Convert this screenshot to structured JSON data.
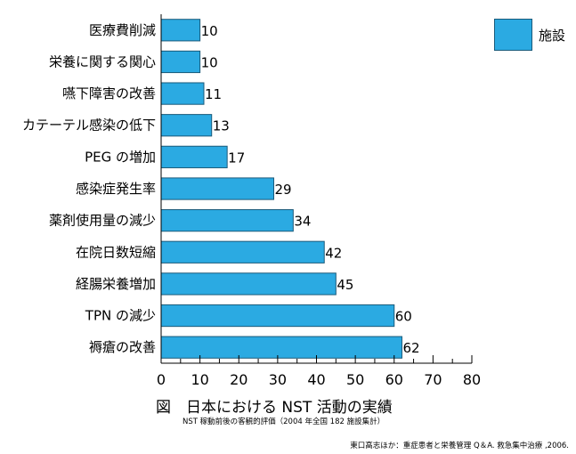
{
  "chart_data": {
    "type": "bar",
    "orientation": "horizontal",
    "categories": [
      "医療費削減",
      "栄養に関する関心",
      "嚥下障害の改善",
      "カテーテル感染の低下",
      "PEG の増加",
      "感染症発生率",
      "薬剤使用量の減少",
      "在院日数短縮",
      "経腸栄養増加",
      "TPN の減少",
      "褥瘡の改善"
    ],
    "series": [
      {
        "name": "施設",
        "values": [
          10,
          10,
          11,
          13,
          17,
          29,
          34,
          42,
          45,
          60,
          62
        ],
        "color": "#2baae2"
      }
    ],
    "xlim": [
      0,
      80
    ],
    "xticks": [
      0,
      10,
      20,
      30,
      40,
      50,
      60,
      70,
      80
    ],
    "title": "図　日本における NST 活動の実績",
    "subtitle": "NST 稼動前後の客観的評価（2004 年全国 182 施設集計）",
    "grid": false,
    "legend_position": "top-right"
  },
  "caption": {
    "title": "図　日本における NST 活動の実績",
    "subtitle": "NST 稼動前後の客観的評価（2004 年全国 182 施設集計）",
    "source": "東口高志ほか：重症患者と栄養管理 Q＆A. 救急集中治療 ,2006."
  }
}
